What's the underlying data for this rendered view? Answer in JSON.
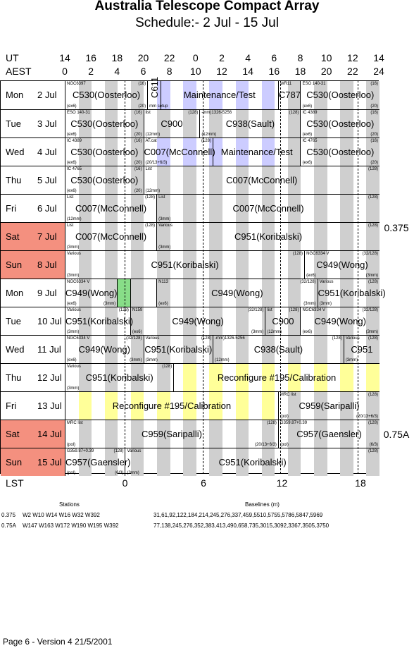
{
  "header": {
    "title": "Australia Telescope Compact Array",
    "subtitle": "Schedule:- 2  Jul - 15 Jul",
    "ut_label": "UT",
    "aest_label": "AEST",
    "ut_ticks": [
      "14",
      "16",
      "18",
      "20",
      "22",
      "0",
      "2",
      "4",
      "6",
      "8",
      "10",
      "12",
      "14"
    ],
    "aest_ticks": [
      "0",
      "2",
      "4",
      "6",
      "8",
      "10",
      "12",
      "14",
      "16",
      "18",
      "20",
      "22",
      "24"
    ]
  },
  "days": [
    {
      "name": "Mon",
      "num": "2",
      "mon": "Jul",
      "weekend": false
    },
    {
      "name": "Tue",
      "num": "3",
      "mon": "Jul",
      "weekend": false
    },
    {
      "name": "Wed",
      "num": "4",
      "mon": "Jul",
      "weekend": false
    },
    {
      "name": "Thu",
      "num": "5",
      "mon": "Jul",
      "weekend": false
    },
    {
      "name": "Fri",
      "num": "6",
      "mon": "Jul",
      "weekend": false
    },
    {
      "name": "Sat",
      "num": "7",
      "mon": "Jul",
      "weekend": true
    },
    {
      "name": "Sun",
      "num": "8",
      "mon": "Jul",
      "weekend": true
    },
    {
      "name": "Mon",
      "num": "9",
      "mon": "Jul",
      "weekend": false
    },
    {
      "name": "Tue",
      "num": "10",
      "mon": "Jul",
      "weekend": false
    },
    {
      "name": "Wed",
      "num": "11",
      "mon": "Jul",
      "weekend": false
    },
    {
      "name": "Thu",
      "num": "12",
      "mon": "Jul",
      "weekend": false
    },
    {
      "name": "Fri",
      "num": "13",
      "mon": "Jul",
      "weekend": false
    },
    {
      "name": "Sat",
      "num": "14",
      "mon": "Jul",
      "weekend": true
    },
    {
      "name": "Sun",
      "num": "15",
      "mon": "Jul",
      "weekend": true
    }
  ],
  "configs": [
    "0.375",
    "0.75A"
  ],
  "schedule": [
    {
      "blocks": [
        {
          "from": 0,
          "to": 6.3,
          "main": "C530(Oosterloo)",
          "src": "NGC6397",
          "tag": "(16)",
          "note": "(ex6)",
          "note2": "(20)"
        },
        {
          "from": 6.3,
          "to": 7.3,
          "main": "C611",
          "src": "",
          "tag": "",
          "note": "mm setup",
          "note2": ""
        },
        {
          "from": 7.3,
          "to": 16.3,
          "main": "Maintenance/Test",
          "src": "",
          "tag": "",
          "note": "",
          "note2": ""
        },
        {
          "from": 16.3,
          "to": 18.0,
          "main": "C787",
          "src": "WR11",
          "tag": "",
          "note": "",
          "note2": ""
        },
        {
          "from": 18.0,
          "to": 24,
          "main": "C530(Oosterloo)",
          "src": "ESO 140-31",
          "tag": "(16)",
          "note": "(ex6)",
          "note2": "(20)"
        }
      ]
    },
    {
      "blocks": [
        {
          "from": 0,
          "to": 6.0,
          "main": "C530(Oosterloo)",
          "src": "ESO 140-31",
          "tag": "(16)",
          "note": "(ex6)",
          "note2": "(20)"
        },
        {
          "from": 6.0,
          "to": 10.3,
          "main": "C900",
          "src": "list",
          "tag": "(128)",
          "note": "(12mm)",
          "note2": ""
        },
        {
          "from": 10.3,
          "to": 18.0,
          "main": "C938(Sault)",
          "src": "-mm)1326-5256",
          "tag": "(128)",
          "note": "(12mm)",
          "note2": ""
        },
        {
          "from": 18.0,
          "to": 24,
          "main": "C530(Oosterloo)",
          "src": "IC 4389",
          "tag": "(16)",
          "note": "(ex6)",
          "note2": "(20)"
        }
      ]
    },
    {
      "blocks": [
        {
          "from": 0,
          "to": 6.0,
          "main": "C530(Oosterloo)",
          "src": "IC 4389",
          "tag": "(16)",
          "note": "(ex6)",
          "note2": "(20)"
        },
        {
          "from": 6.0,
          "to": 11.3,
          "main": "C007(McConnell)",
          "src": "AT.cat",
          "tag": "(128)",
          "note": "(20/13+6/3)",
          "note2": ""
        },
        {
          "from": 11.3,
          "to": 18.0,
          "main": "Maintenance/Test",
          "src": "",
          "tag": "",
          "note": "",
          "note2": ""
        },
        {
          "from": 18.0,
          "to": 24,
          "main": "C530(Oosterloo)",
          "src": "IC 4765",
          "tag": "(16)",
          "note": "(ex6)",
          "note2": "(20)"
        }
      ]
    },
    {
      "blocks": [
        {
          "from": 0,
          "to": 6.0,
          "main": "C530(Oosterloo)",
          "src": "IC 4765",
          "tag": "(16)",
          "note": "(ex6)",
          "note2": "(20)"
        },
        {
          "from": 6.0,
          "to": 24,
          "main": "C007(McConnell)",
          "src": "List",
          "tag": "(128)",
          "note": "(12mm)",
          "note2": ""
        }
      ]
    },
    {
      "blocks": [
        {
          "from": 0,
          "to": 7.0,
          "main": "C007(McConnell)",
          "src": "List",
          "tag": "(128)",
          "note": "(12mm)",
          "note2": ""
        },
        {
          "from": 7.0,
          "to": 24,
          "main": "C007(McConnell)",
          "src": "List",
          "tag": "(128)",
          "note": "(3mm)",
          "note2": ""
        }
      ]
    },
    {
      "blocks": [
        {
          "from": 0,
          "to": 7.0,
          "main": "C007(McConnell)",
          "src": "List",
          "tag": "(128)",
          "note": "(3mm)",
          "note2": ""
        },
        {
          "from": 7.0,
          "to": 24,
          "main": "C951(Koribalski)",
          "src": "Various",
          "tag": "(128)",
          "note": "(3mm)",
          "note2": ""
        }
      ]
    },
    {
      "blocks": [
        {
          "from": 0,
          "to": 18.3,
          "main": "C951(Koribalski)",
          "src": "Various",
          "tag": "(128)",
          "note": "(3mm)",
          "note2": ""
        },
        {
          "from": 18.3,
          "to": 24,
          "main": "C949(Wong)",
          "src": "NGC6334 V",
          "tag": "(32/128)",
          "note": "(ex6)",
          "note2": "(3mm)"
        }
      ]
    },
    {
      "blocks": [
        {
          "from": 0,
          "to": 4.0,
          "main": "C949(Wong)",
          "src": "NGC6334 V",
          "tag": "",
          "note": "(ex6)",
          "note2": "(3mm)"
        },
        {
          "from": 4.0,
          "to": 5.0,
          "main": "",
          "src": "",
          "tag": "",
          "note": "",
          "note2": ""
        },
        {
          "from": 5.0,
          "to": 7.0,
          "main": "",
          "src": "",
          "tag": "",
          "note": "",
          "note2": ""
        },
        {
          "from": 7.0,
          "to": 19.3,
          "main": "C949(Wong)",
          "src": "N113",
          "tag": "(32/128)",
          "note": "(ex6)",
          "note2": "(3mm)"
        },
        {
          "from": 19.3,
          "to": 24,
          "main": "C951(Koribalski)",
          "src": "Various",
          "tag": "(128)",
          "note": "(3mm)",
          "note2": ""
        }
      ]
    },
    {
      "blocks": [
        {
          "from": 0,
          "to": 5.0,
          "main": "C951(Koribalski)",
          "src": "Various",
          "tag": "(128)",
          "note": "(3mm)",
          "note2": ""
        },
        {
          "from": 5.0,
          "to": 15.3,
          "main": "C949(Wong)",
          "src": "N159",
          "tag": "(32/128)",
          "note": "(ex6)",
          "note2": "(3mm)"
        },
        {
          "from": 15.3,
          "to": 18.0,
          "main": "C900",
          "src": "list",
          "tag": "(128)",
          "note": "(12mm)",
          "note2": ""
        },
        {
          "from": 18.0,
          "to": 24,
          "main": "C949(Wong)",
          "src": "NGC6334 V",
          "tag": "(32/128)",
          "note": "(ex6)",
          "note2": "(3mm)"
        }
      ]
    },
    {
      "blocks": [
        {
          "from": 0,
          "to": 6.0,
          "main": "C949(Wong)",
          "src": "NGC6334 V",
          "tag": "(32/128)",
          "note": "(ex6)",
          "note2": "(3mm)"
        },
        {
          "from": 6.0,
          "to": 11.3,
          "main": "C951(Koribalski)",
          "src": "Various",
          "tag": "(128)",
          "note": "(3mm)",
          "note2": ""
        },
        {
          "from": 11.3,
          "to": 21.3,
          "main": "C938(Sault)",
          "src": "-mm)1326-5256",
          "tag": "(128)",
          "note": "(12mm)",
          "note2": ""
        },
        {
          "from": 21.3,
          "to": 24,
          "main": "C951",
          "src": "Various",
          "tag": "(128)",
          "note": "(3mm)",
          "note2": ""
        }
      ]
    },
    {
      "blocks": [
        {
          "from": 0,
          "to": 8.3,
          "main": "C951(Koribalski)",
          "src": "Various",
          "tag": "(128)",
          "note": "(3mm)",
          "note2": ""
        },
        {
          "from": 8.3,
          "to": 24,
          "main": "Reconfigure #195/Calibration",
          "src": "",
          "tag": "",
          "note": "",
          "note2": ""
        }
      ]
    },
    {
      "blocks": [
        {
          "from": 0,
          "to": 16.3,
          "main": "Reconfigure #195/Calibration",
          "src": "",
          "tag": "",
          "note": "",
          "note2": ""
        },
        {
          "from": 16.3,
          "to": 24,
          "main": "C959(Saripalli)",
          "src": "MRC list",
          "tag": "(128)",
          "note": "(pol)",
          "note2": "(20/13+6/3)"
        }
      ]
    },
    {
      "blocks": [
        {
          "from": 0,
          "to": 16.3,
          "main": "C959(Saripalli)",
          "src": "MRC list",
          "tag": "(128)",
          "note": "(pol)",
          "note2": "(20/13+6/3)"
        },
        {
          "from": 16.3,
          "to": 24,
          "main": "C957(Gaensler)",
          "src": "G359.87+0.39",
          "tag": "(128)",
          "note": "(pol)",
          "note2": "(6/3)"
        }
      ]
    },
    {
      "blocks": [
        {
          "from": 0,
          "to": 4.6,
          "main": "C957(Gaensler)",
          "src": "G359.87+0.39",
          "tag": "(128)",
          "note": "(pol)",
          "note2": "(6/3)"
        },
        {
          "from": 4.6,
          "to": 24,
          "main": "C951(Koribalski)",
          "src": "Various",
          "tag": "(128)",
          "note": "(3mm)",
          "note2": ""
        }
      ]
    }
  ],
  "footer": {
    "lst_label": "LST",
    "lst_ticks": [
      "0",
      "6",
      "12",
      "18"
    ],
    "stations_header": "Stations",
    "baselines_header": "Baselines (m)",
    "rows": [
      {
        "config": "0.375",
        "stations": "W2 W10 W14 W16 W32 W392",
        "baselines": "31,61,92,122,184,214,245,276,337,459,5510,5755,5786,5847,5969"
      },
      {
        "config": "0.75A",
        "stations": "W147 W163 W172 W190 W195 W392",
        "baselines": "77,138,245,276,352,383,413,490,658,735,3015,3092,3367,3505,3750"
      }
    ],
    "version": "Page 6 - Version 4  21/5/2001"
  },
  "colors": {
    "weekend": "#f4907f",
    "stripe_grey": "#cfcfcf",
    "stripe_yellow": "#ffff99",
    "stripe_blue": "#ccccff",
    "stripe_green": "#88dd88"
  }
}
